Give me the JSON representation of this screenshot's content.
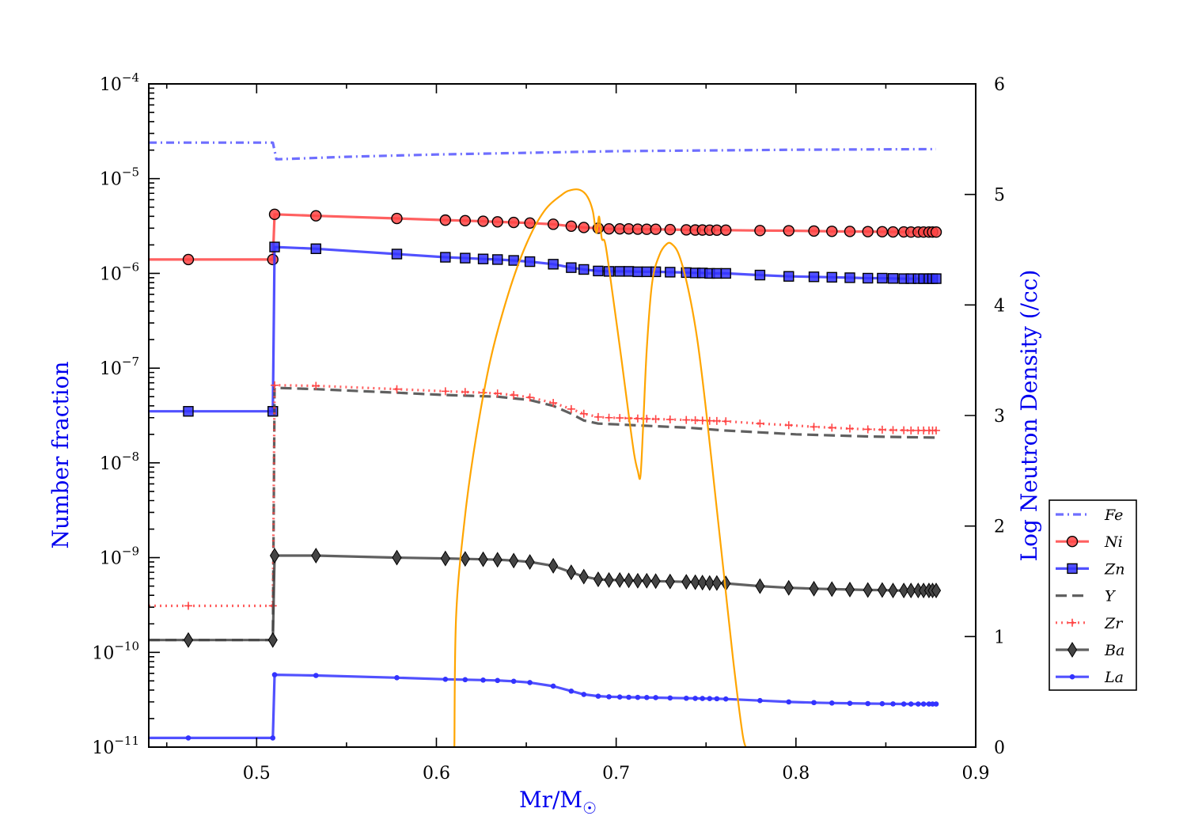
{
  "chart_data": {
    "type": "line",
    "xlabel": "Mr/M",
    "xlabel_symbol": "☉",
    "ylabel": "Number fraction",
    "y2label": "Log Neutron Density (/cc)",
    "xlim": [
      0.44,
      0.9
    ],
    "xticks": [
      0.5,
      0.6,
      0.7,
      0.8,
      0.9
    ],
    "xtick_labels": [
      "0.5",
      "0.6",
      "0.7",
      "0.8",
      "0.9"
    ],
    "ylim_log10": [
      -11,
      -4
    ],
    "yscale": "log",
    "ytick_exponents": [
      -4,
      -5,
      -6,
      -7,
      -8,
      -9,
      -10,
      -11
    ],
    "ytick_base": "10",
    "ytick_labels": [
      "−4",
      "−5",
      "−6",
      "−7",
      "−8",
      "−9",
      "−10",
      "−11"
    ],
    "y2lim": [
      0,
      6
    ],
    "y2ticks": [
      0,
      1,
      2,
      3,
      4,
      5,
      6
    ],
    "y2tick_labels": [
      "0",
      "1",
      "2",
      "3",
      "4",
      "5",
      "6"
    ],
    "legend_position": "lower-right",
    "grid": false,
    "series": [
      {
        "name": "Fe",
        "color": "#5555ff",
        "style": "dashdot",
        "marker": "none",
        "x": [
          0.44,
          0.509,
          0.511,
          0.55,
          0.6,
          0.7,
          0.8,
          0.878
        ],
        "y": [
          2.4e-05,
          2.4e-05,
          1.6e-05,
          1.7e-05,
          1.8e-05,
          1.95e-05,
          2.02e-05,
          2.05e-05
        ]
      },
      {
        "name": "Ni",
        "color": "#ff4444",
        "style": "solid",
        "marker": "circle",
        "x": [
          0.44,
          0.462,
          0.509,
          0.51,
          0.533,
          0.578,
          0.605,
          0.616,
          0.626,
          0.634,
          0.643,
          0.652,
          0.665,
          0.675,
          0.682,
          0.69,
          0.696,
          0.702,
          0.707,
          0.712,
          0.717,
          0.722,
          0.73,
          0.739,
          0.744,
          0.748,
          0.752,
          0.756,
          0.761,
          0.78,
          0.796,
          0.81,
          0.82,
          0.83,
          0.84,
          0.848,
          0.854,
          0.86,
          0.864,
          0.868,
          0.871,
          0.874,
          0.876,
          0.878
        ],
        "y": [
          1.4e-06,
          1.4e-06,
          1.4e-06,
          4.2e-06,
          4.05e-06,
          3.8e-06,
          3.65e-06,
          3.6e-06,
          3.55e-06,
          3.5e-06,
          3.45e-06,
          3.4e-06,
          3.3e-06,
          3.15e-06,
          3.05e-06,
          3e-06,
          2.95e-06,
          2.95e-06,
          2.95e-06,
          2.93e-06,
          2.92e-06,
          2.92e-06,
          2.9e-06,
          2.88e-06,
          2.87e-06,
          2.87e-06,
          2.86e-06,
          2.86e-06,
          2.86e-06,
          2.83e-06,
          2.82e-06,
          2.8e-06,
          2.78e-06,
          2.77e-06,
          2.76e-06,
          2.75e-06,
          2.74e-06,
          2.74e-06,
          2.73e-06,
          2.73e-06,
          2.73e-06,
          2.73e-06,
          2.73e-06,
          2.73e-06
        ]
      },
      {
        "name": "Zn",
        "color": "#3333ff",
        "style": "solid",
        "marker": "square",
        "x": [
          0.44,
          0.462,
          0.509,
          0.51,
          0.533,
          0.578,
          0.605,
          0.616,
          0.626,
          0.634,
          0.643,
          0.652,
          0.665,
          0.675,
          0.682,
          0.69,
          0.696,
          0.702,
          0.707,
          0.712,
          0.717,
          0.722,
          0.73,
          0.739,
          0.744,
          0.748,
          0.752,
          0.756,
          0.761,
          0.78,
          0.796,
          0.81,
          0.82,
          0.83,
          0.84,
          0.848,
          0.854,
          0.86,
          0.864,
          0.868,
          0.871,
          0.874,
          0.876,
          0.878
        ],
        "y": [
          3.5e-08,
          3.5e-08,
          3.5e-08,
          1.9e-06,
          1.82e-06,
          1.6e-06,
          1.48e-06,
          1.45e-06,
          1.42e-06,
          1.4e-06,
          1.37e-06,
          1.33e-06,
          1.25e-06,
          1.15e-06,
          1.1e-06,
          1.06e-06,
          1.05e-06,
          1.05e-06,
          1.05e-06,
          1.04e-06,
          1.04e-06,
          1.04e-06,
          1.03e-06,
          1.02e-06,
          1.01e-06,
          1.01e-06,
          1e-06,
          1e-06,
          1e-06,
          9.6e-07,
          9.3e-07,
          9.2e-07,
          9.1e-07,
          9e-07,
          8.9e-07,
          8.9e-07,
          8.85e-07,
          8.8e-07,
          8.8e-07,
          8.8e-07,
          8.8e-07,
          8.8e-07,
          8.8e-07,
          8.8e-07
        ]
      },
      {
        "name": "Y",
        "color": "#444444",
        "style": "dashed",
        "marker": "none",
        "x": [
          0.44,
          0.509,
          0.51,
          0.533,
          0.578,
          0.605,
          0.634,
          0.652,
          0.665,
          0.675,
          0.682,
          0.69,
          0.7,
          0.72,
          0.74,
          0.76,
          0.78,
          0.8,
          0.82,
          0.84,
          0.86,
          0.878
        ],
        "y": [
          1.35e-10,
          1.35e-10,
          6.2e-08,
          6e-08,
          5.5e-08,
          5.2e-08,
          5e-08,
          4.6e-08,
          4e-08,
          3.3e-08,
          2.8e-08,
          2.6e-08,
          2.55e-08,
          2.45e-08,
          2.35e-08,
          2.2e-08,
          2.1e-08,
          2e-08,
          1.95e-08,
          1.9e-08,
          1.87e-08,
          1.85e-08
        ]
      },
      {
        "name": "Zr",
        "color": "#ff4444",
        "style": "dotted",
        "marker": "plus",
        "x": [
          0.44,
          0.462,
          0.509,
          0.51,
          0.533,
          0.578,
          0.605,
          0.616,
          0.626,
          0.634,
          0.643,
          0.652,
          0.665,
          0.675,
          0.682,
          0.69,
          0.696,
          0.702,
          0.707,
          0.712,
          0.717,
          0.722,
          0.73,
          0.739,
          0.744,
          0.748,
          0.752,
          0.756,
          0.761,
          0.78,
          0.796,
          0.81,
          0.82,
          0.83,
          0.84,
          0.848,
          0.854,
          0.86,
          0.864,
          0.868,
          0.871,
          0.874,
          0.876,
          0.878
        ],
        "y": [
          3.1e-10,
          3.1e-10,
          3.1e-10,
          6.6e-08,
          6.5e-08,
          6e-08,
          5.7e-08,
          5.6e-08,
          5.5e-08,
          5.4e-08,
          5.2e-08,
          4.9e-08,
          4.3e-08,
          3.7e-08,
          3.3e-08,
          3.05e-08,
          3e-08,
          2.98e-08,
          2.96e-08,
          2.94e-08,
          2.92e-08,
          2.9e-08,
          2.87e-08,
          2.84e-08,
          2.82e-08,
          2.8e-08,
          2.78e-08,
          2.77e-08,
          2.75e-08,
          2.6e-08,
          2.5e-08,
          2.4e-08,
          2.35e-08,
          2.3e-08,
          2.26e-08,
          2.24e-08,
          2.22e-08,
          2.21e-08,
          2.2e-08,
          2.2e-08,
          2.2e-08,
          2.2e-08,
          2.2e-08,
          2.2e-08
        ]
      },
      {
        "name": "Ba",
        "color": "#444444",
        "style": "solid",
        "marker": "diamond",
        "x": [
          0.44,
          0.462,
          0.509,
          0.51,
          0.533,
          0.578,
          0.605,
          0.616,
          0.626,
          0.634,
          0.643,
          0.652,
          0.665,
          0.675,
          0.682,
          0.69,
          0.696,
          0.702,
          0.707,
          0.712,
          0.717,
          0.722,
          0.73,
          0.739,
          0.744,
          0.748,
          0.752,
          0.756,
          0.761,
          0.78,
          0.796,
          0.81,
          0.82,
          0.83,
          0.84,
          0.848,
          0.854,
          0.86,
          0.864,
          0.868,
          0.871,
          0.874,
          0.876,
          0.878
        ],
        "y": [
          1.35e-10,
          1.35e-10,
          1.35e-10,
          1.05e-09,
          1.05e-09,
          1e-09,
          9.8e-10,
          9.7e-10,
          9.6e-10,
          9.5e-10,
          9.3e-10,
          9e-10,
          8.2e-10,
          7e-10,
          6.3e-10,
          5.9e-10,
          5.8e-10,
          5.8e-10,
          5.75e-10,
          5.7e-10,
          5.7e-10,
          5.65e-10,
          5.6e-10,
          5.55e-10,
          5.5e-10,
          5.45e-10,
          5.4e-10,
          5.4e-10,
          5.35e-10,
          5e-10,
          4.8e-10,
          4.7e-10,
          4.65e-10,
          4.6e-10,
          4.55e-10,
          4.55e-10,
          4.5e-10,
          4.5e-10,
          4.5e-10,
          4.5e-10,
          4.5e-10,
          4.5e-10,
          4.5e-10,
          4.5e-10
        ]
      },
      {
        "name": "La",
        "color": "#3333ff",
        "style": "solid",
        "marker": "dot",
        "x": [
          0.44,
          0.462,
          0.509,
          0.51,
          0.533,
          0.578,
          0.605,
          0.616,
          0.626,
          0.634,
          0.643,
          0.652,
          0.665,
          0.675,
          0.682,
          0.69,
          0.696,
          0.702,
          0.707,
          0.712,
          0.717,
          0.722,
          0.73,
          0.739,
          0.744,
          0.748,
          0.752,
          0.756,
          0.761,
          0.78,
          0.796,
          0.81,
          0.82,
          0.83,
          0.84,
          0.848,
          0.854,
          0.86,
          0.864,
          0.868,
          0.871,
          0.874,
          0.876,
          0.878
        ],
        "y": [
          1.25e-11,
          1.25e-11,
          1.25e-11,
          5.8e-11,
          5.7e-11,
          5.4e-11,
          5.2e-11,
          5.15e-11,
          5.1e-11,
          5.05e-11,
          4.95e-11,
          4.8e-11,
          4.4e-11,
          3.9e-11,
          3.6e-11,
          3.45e-11,
          3.4e-11,
          3.38e-11,
          3.36e-11,
          3.35e-11,
          3.34e-11,
          3.33e-11,
          3.3e-11,
          3.28e-11,
          3.27e-11,
          3.26e-11,
          3.25e-11,
          3.24e-11,
          3.22e-11,
          3.1e-11,
          3e-11,
          2.95e-11,
          2.92e-11,
          2.9e-11,
          2.88e-11,
          2.87e-11,
          2.86e-11,
          2.85e-11,
          2.85e-11,
          2.85e-11,
          2.85e-11,
          2.85e-11,
          2.85e-11,
          2.85e-11
        ]
      }
    ],
    "neutron_density": {
      "axis": "right",
      "color": "#ffa500",
      "style": "solid",
      "x": [
        0.61,
        0.611,
        0.616,
        0.622,
        0.63,
        0.64,
        0.65,
        0.66,
        0.67,
        0.675,
        0.68,
        0.684,
        0.687,
        0.689,
        0.6905,
        0.692,
        0.694,
        0.698,
        0.703,
        0.707,
        0.71,
        0.712,
        0.7135,
        0.715,
        0.717,
        0.72,
        0.724,
        0.728,
        0.731,
        0.735,
        0.74,
        0.745,
        0.75,
        0.755,
        0.76,
        0.765,
        0.77,
        0.772
      ],
      "y": [
        0.0,
        1.2,
        2.1,
        2.8,
        3.5,
        4.1,
        4.55,
        4.85,
        5.0,
        5.04,
        5.04,
        4.98,
        4.85,
        4.65,
        4.8,
        4.6,
        4.55,
        4.1,
        3.5,
        3.0,
        2.65,
        2.5,
        2.45,
        2.9,
        3.6,
        4.2,
        4.45,
        4.55,
        4.55,
        4.45,
        4.15,
        3.7,
        3.05,
        2.3,
        1.55,
        0.8,
        0.15,
        0.0
      ]
    }
  }
}
